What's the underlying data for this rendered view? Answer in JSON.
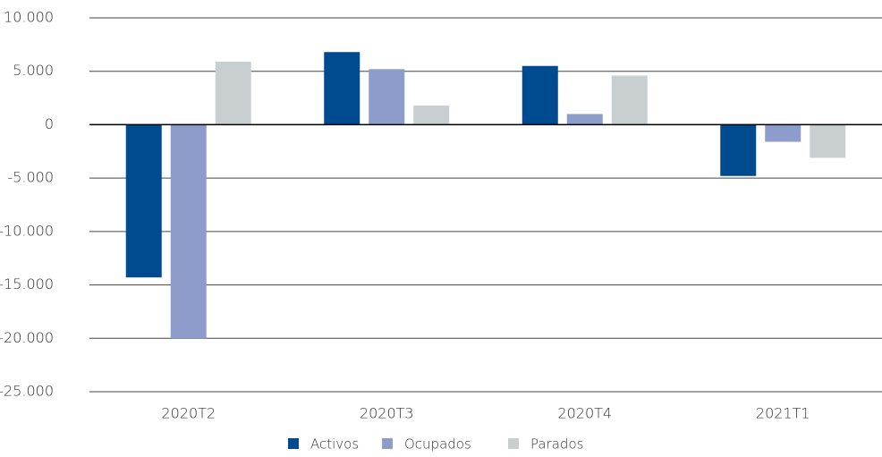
{
  "chart_data": {
    "type": "bar",
    "categories": [
      "2020T2",
      "2020T3",
      "2020T4",
      "2021T1"
    ],
    "series": [
      {
        "name": "Activos",
        "color": "#004a8f",
        "values": [
          -14300,
          6800,
          5500,
          -4800
        ]
      },
      {
        "name": "Ocupados",
        "color": "#8e9ccc",
        "values": [
          -20000,
          5200,
          1000,
          -1600
        ]
      },
      {
        "name": "Parados",
        "color": "#c9cfd1",
        "values": [
          5900,
          1800,
          4600,
          -3100
        ]
      }
    ],
    "ylim": [
      -25000,
      10000
    ],
    "yticks": [
      {
        "value": -25000,
        "label": "-25.000"
      },
      {
        "value": -20000,
        "label": "-20.000"
      },
      {
        "value": -15000,
        "label": "-15.000"
      },
      {
        "value": -10000,
        "label": "-10.000"
      },
      {
        "value": -5000,
        "label": "-5.000"
      },
      0,
      {
        "value": 5000,
        "label": "5.000"
      },
      {
        "value": 10000,
        "label": "10.000"
      }
    ],
    "grid": true,
    "legend": "bottom"
  }
}
